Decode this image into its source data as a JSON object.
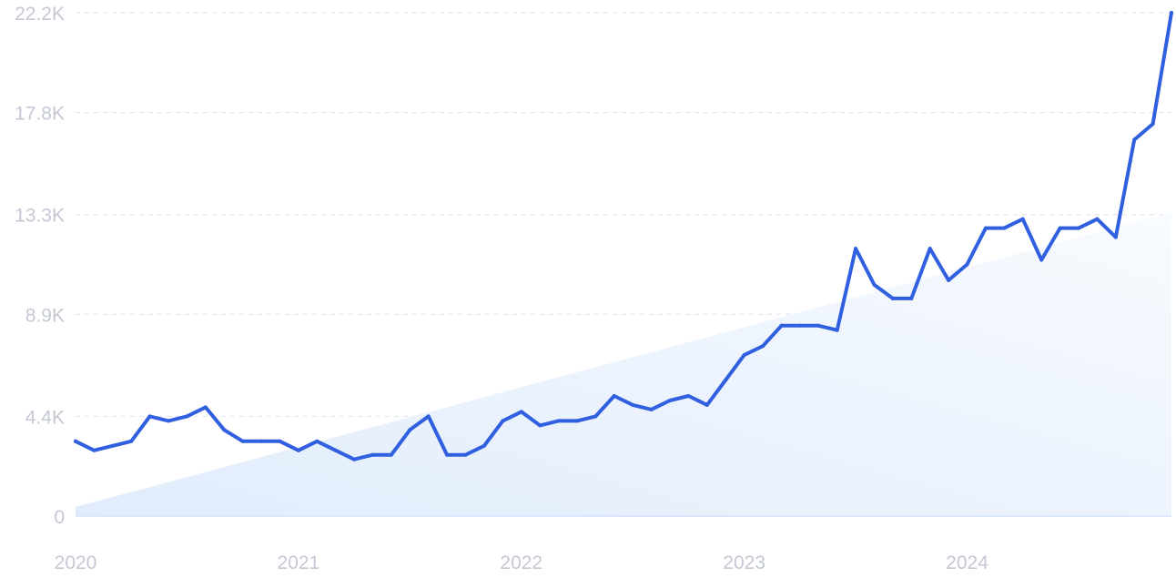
{
  "chart_data": {
    "type": "line",
    "title": "",
    "xlabel": "",
    "ylabel": "",
    "ylim": [
      0,
      22200
    ],
    "yticks": [
      {
        "value": 0,
        "label": "0"
      },
      {
        "value": 4400,
        "label": "4.4K"
      },
      {
        "value": 8900,
        "label": "8.9K"
      },
      {
        "value": 13300,
        "label": "13.3K"
      },
      {
        "value": 17800,
        "label": "17.8K"
      },
      {
        "value": 22200,
        "label": "22.2K"
      }
    ],
    "xlim": [
      "2020-01",
      "2024-12"
    ],
    "xticks": [
      {
        "value": "2020-01",
        "label": "2020"
      },
      {
        "value": "2021-01",
        "label": "2021"
      },
      {
        "value": "2022-01",
        "label": "2022"
      },
      {
        "value": "2023-01",
        "label": "2023"
      },
      {
        "value": "2024-01",
        "label": "2024"
      }
    ],
    "grid": true,
    "legend": "none",
    "colors": {
      "line": "#3060e0",
      "trend_fill": "#eaf2fd",
      "tick_label": "#c4c8d4",
      "grid": "#dde1ea"
    },
    "trend": {
      "start": {
        "x": "2020-01",
        "y": 400
      },
      "end": {
        "x": "2024-12",
        "y": 13400
      }
    },
    "series": [
      {
        "x": [
          "2020-01",
          "2020-02",
          "2020-03",
          "2020-04",
          "2020-05",
          "2020-06",
          "2020-07",
          "2020-08",
          "2020-09",
          "2020-10",
          "2020-11",
          "2020-12",
          "2021-01",
          "2021-02",
          "2021-03",
          "2021-04",
          "2021-05",
          "2021-06",
          "2021-07",
          "2021-08",
          "2021-09",
          "2021-10",
          "2021-11",
          "2021-12",
          "2022-01",
          "2022-02",
          "2022-03",
          "2022-04",
          "2022-05",
          "2022-06",
          "2022-07",
          "2022-08",
          "2022-09",
          "2022-10",
          "2022-11",
          "2022-12",
          "2023-01",
          "2023-02",
          "2023-03",
          "2023-04",
          "2023-05",
          "2023-06",
          "2023-07",
          "2023-08",
          "2023-09",
          "2023-10",
          "2023-11",
          "2023-12",
          "2024-01",
          "2024-02",
          "2024-03",
          "2024-04",
          "2024-05",
          "2024-06",
          "2024-07",
          "2024-08",
          "2024-09",
          "2024-10",
          "2024-11",
          "2024-12"
        ],
        "values": [
          3300,
          2900,
          3100,
          3300,
          4400,
          4200,
          4400,
          4800,
          3800,
          3300,
          3300,
          3300,
          2900,
          3300,
          2900,
          2500,
          2700,
          2700,
          3800,
          4400,
          2700,
          2700,
          3100,
          4200,
          4600,
          4000,
          4200,
          4200,
          4400,
          5300,
          4900,
          4700,
          5100,
          5300,
          4900,
          6000,
          7100,
          7500,
          8400,
          8400,
          8400,
          8200,
          11800,
          10200,
          9600,
          9600,
          11800,
          10400,
          11100,
          12700,
          12700,
          13100,
          11300,
          12700,
          12700,
          13100,
          12300,
          16600,
          17300,
          22200
        ]
      }
    ]
  }
}
